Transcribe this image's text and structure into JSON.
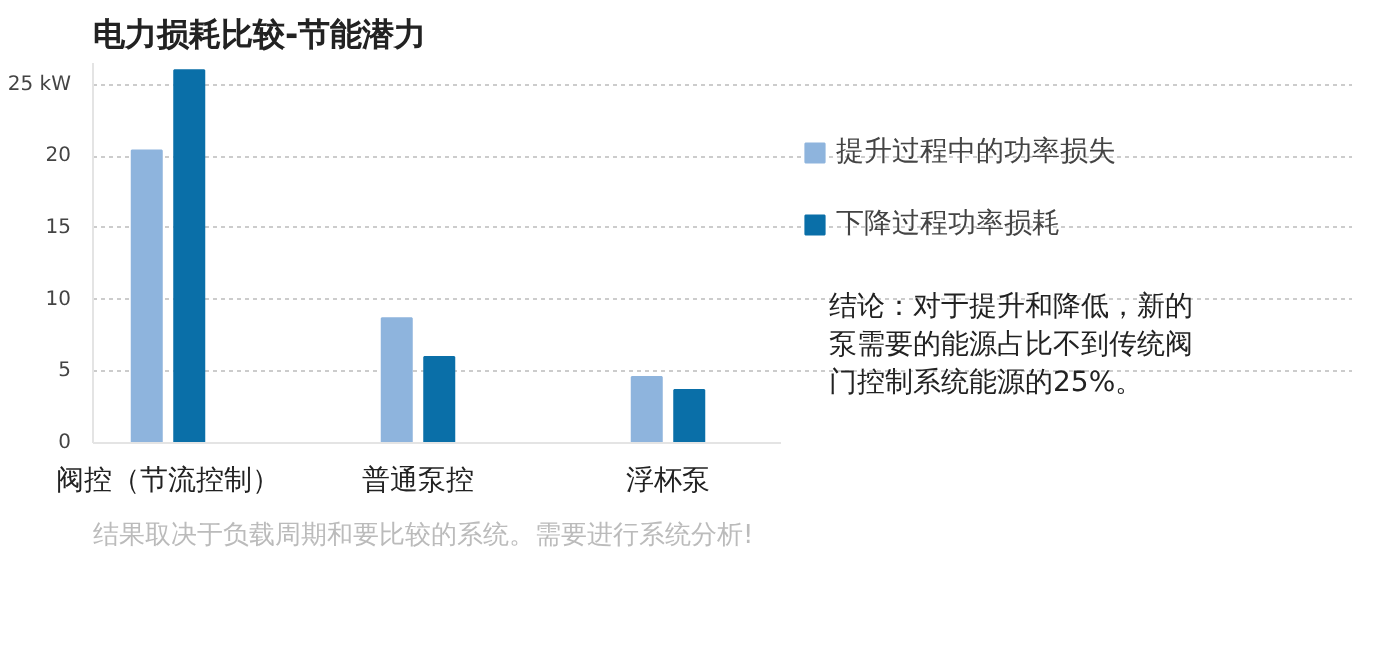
{
  "chart_data": {
    "type": "bar",
    "title": "电力损耗比较-节能潜力",
    "categories": [
      "阀控（节流控制）",
      "普通泵控",
      "浮杯泵"
    ],
    "series": [
      {
        "name": "提升过程中的功率损失",
        "color": "#8eb4dd",
        "values": [
          20.4,
          8.7,
          4.6
        ]
      },
      {
        "name": "下降过程功率损耗",
        "color": "#0a6fa8",
        "values": [
          26.0,
          6.0,
          3.7
        ]
      }
    ],
    "ylim": [
      0,
      26.5
    ],
    "yticks": [
      0,
      5,
      10,
      15,
      20,
      {
        "value": 25,
        "label": "25 kW"
      }
    ],
    "grid": "y",
    "legend": "right",
    "annotations": [
      "结论：对于提升和降低，新的泵需要的能源占比不到传统阀门控制系统能源的25%。",
      "结果取决于负载周期和要比较的系统。需要进行系统分析!"
    ]
  }
}
